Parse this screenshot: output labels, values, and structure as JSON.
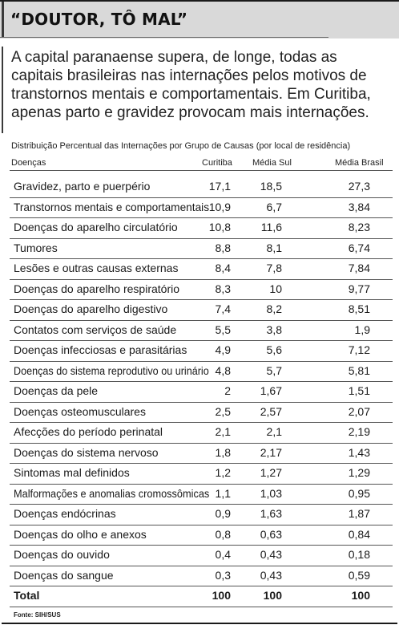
{
  "title": "“DOUTOR, TÔ MAL”",
  "intro": "A capital paranaense supera, de longe, todas as capitais brasileiras nas internações pelos motivos de transtornos mentais e comportamentais. Em Curitiba, apenas parto e gravidez provocam mais internações.",
  "table": {
    "caption": "Distribuição Percentual das Internações por Grupo de Causas (por local de residência)",
    "columns": [
      "Doenças",
      "Curitiba",
      "Média Sul",
      "Média Brasil"
    ],
    "rows": [
      {
        "disease": "Gravidez, parto e puerpério",
        "curitiba": "17,1",
        "sul": "18,5",
        "brasil": "27,3"
      },
      {
        "disease": "Transtornos mentais e comportamentais",
        "curitiba": "10,9",
        "sul": "6,7",
        "brasil": "3,84"
      },
      {
        "disease": "Doenças do aparelho circulatório",
        "curitiba": "10,8",
        "sul": "11,6",
        "brasil": "8,23"
      },
      {
        "disease": "Tumores",
        "curitiba": "8,8",
        "sul": "8,1",
        "brasil": "6,74"
      },
      {
        "disease": "Lesões e outras causas externas",
        "curitiba": "8,4",
        "sul": "7,8",
        "brasil": "7,84"
      },
      {
        "disease": "Doenças do aparelho respiratório",
        "curitiba": "8,3",
        "sul": "10",
        "brasil": "9,77"
      },
      {
        "disease": "Doenças do aparelho digestivo",
        "curitiba": "7,4",
        "sul": "8,2",
        "brasil": "8,51"
      },
      {
        "disease": "Contatos com serviços de saúde",
        "curitiba": "5,5",
        "sul": "3,8",
        "brasil": "1,9"
      },
      {
        "disease": "Doenças infecciosas e parasitárias",
        "curitiba": "4,9",
        "sul": "5,6",
        "brasil": "7,12"
      },
      {
        "disease": "Doenças do sistema reprodutivo ou urinário",
        "curitiba": "4,8",
        "sul": "5,7",
        "brasil": "5,81"
      },
      {
        "disease": "Doenças da pele",
        "curitiba": "2",
        "sul": "1,67",
        "brasil": "1,51"
      },
      {
        "disease": "Doenças osteomusculares",
        "curitiba": "2,5",
        "sul": "2,57",
        "brasil": "2,07"
      },
      {
        "disease": "Afecções do período perinatal",
        "curitiba": "2,1",
        "sul": "2,1",
        "brasil": "2,19"
      },
      {
        "disease": "Doenças do sistema nervoso",
        "curitiba": "1,8",
        "sul": "2,17",
        "brasil": "1,43"
      },
      {
        "disease": "Sintomas mal definidos",
        "curitiba": "1,2",
        "sul": "1,27",
        "brasil": "1,29"
      },
      {
        "disease": "Malformações e anomalias cromossômicas",
        "curitiba": "1,1",
        "sul": "1,03",
        "brasil": "0,95"
      },
      {
        "disease": "Doenças endócrinas",
        "curitiba": "0,9",
        "sul": "1,63",
        "brasil": "1,87"
      },
      {
        "disease": "Doenças do olho e anexos",
        "curitiba": "0,8",
        "sul": "0,63",
        "brasil": "0,84"
      },
      {
        "disease": "Doenças do ouvido",
        "curitiba": "0,4",
        "sul": "0,43",
        "brasil": "0,18"
      },
      {
        "disease": "Doenças do sangue",
        "curitiba": "0,3",
        "sul": "0,43",
        "brasil": "0,59"
      }
    ],
    "total": {
      "disease": "Total",
      "curitiba": "100",
      "sul": "100",
      "brasil": "100"
    }
  },
  "source": "Fonte: SIH/SUS"
}
